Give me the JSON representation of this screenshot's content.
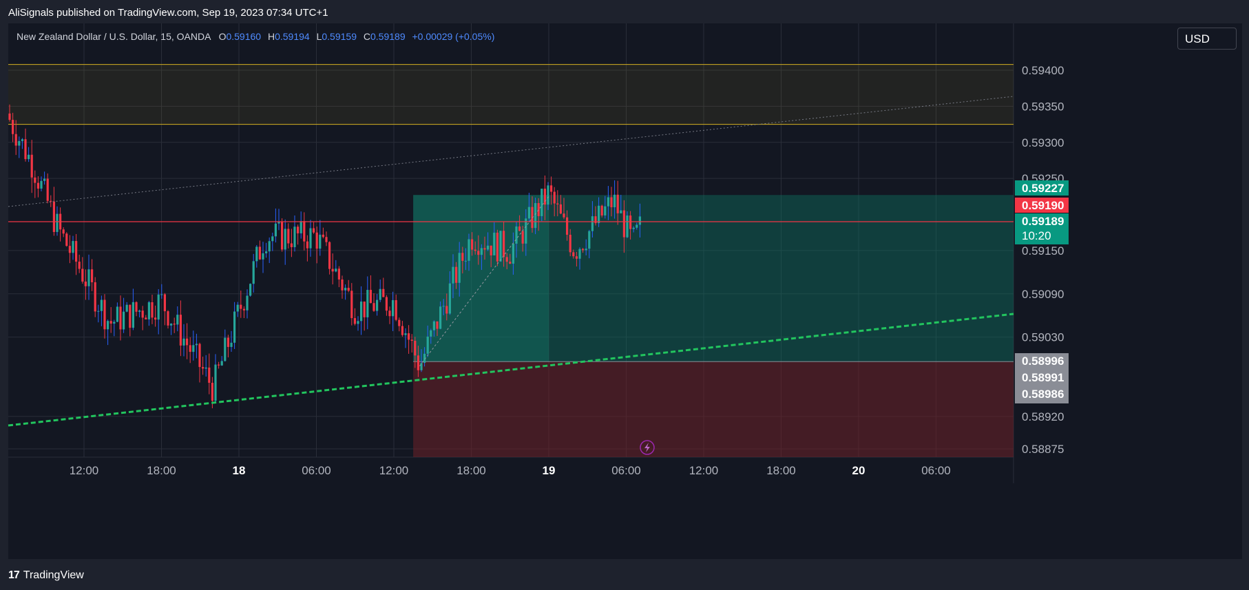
{
  "header": {
    "published": "AliSignals published on TradingView.com, Sep 19, 2023 07:34 UTC+1"
  },
  "legend": {
    "symbol": "New Zealand Dollar / U.S. Dollar, 15, OANDA",
    "o_label": "O",
    "o_value": "0.59160",
    "h_label": "H",
    "h_value": "0.59194",
    "l_label": "L",
    "l_value": "0.59159",
    "c_label": "C",
    "c_value": "0.59189",
    "change": "+0.00029 (+0.05%)"
  },
  "currency_button": "USD",
  "footer": {
    "brand": "TradingView",
    "logo_glyph": "17"
  },
  "colors": {
    "background": "#131722",
    "up": "#26a69a",
    "down": "#f23645",
    "wick_up": "#2962ff",
    "resistance": "#f23645",
    "zone": "#d4b020",
    "target_zone": "#0e5f55",
    "stop_zone": "#5a1f26",
    "support_trend": "#22c55e"
  },
  "chart_data": {
    "type": "candlestick",
    "symbol": "NZDUSD",
    "timeframe": "15",
    "ylim": [
      0.5886,
      0.5946
    ],
    "y_ticks": [
      0.594,
      0.5935,
      0.593,
      0.5925,
      0.5915,
      0.5909,
      0.5903,
      0.5892,
      0.58875
    ],
    "y_tick_labels": [
      "0.59400",
      "0.59350",
      "0.59300",
      "0.59250",
      "0.59150",
      "0.59090",
      "0.59030",
      "0.58920",
      "0.58875"
    ],
    "x_ticks": [
      "12:00",
      "18:00",
      "18",
      "06:00",
      "12:00",
      "18:00",
      "19",
      "06:00",
      "12:00",
      "18:00",
      "20",
      "06:00"
    ],
    "x_tick_bold": [
      false,
      false,
      true,
      false,
      false,
      false,
      true,
      false,
      false,
      false,
      true,
      false
    ],
    "price_labels": [
      {
        "text": "0.59227",
        "value": 0.59227,
        "color": "#089981"
      },
      {
        "text": "0.59190",
        "value": 0.5919,
        "color": "#f23645"
      },
      {
        "text": "0.59189",
        "sub": "10:20",
        "value": 0.59189,
        "color": "#089981"
      },
      {
        "text": "0.58996",
        "value": 0.58996,
        "color": "#8a8d96"
      },
      {
        "text": "0.58991",
        "value": 0.58991,
        "color": "#8a8d96"
      },
      {
        "text": "0.58986",
        "value": 0.58986,
        "color": "#8a8d96"
      }
    ],
    "supply_zone": {
      "top": 0.59408,
      "bottom": 0.59325
    },
    "resistance_level": 0.5919,
    "position": {
      "entry": 0.58996,
      "target": 0.59227,
      "stop": 0.5886
    },
    "key_points": [
      {
        "t": "Sep 17 06:00",
        "price": 0.5934
      },
      {
        "t": "Sep 17 08:00",
        "price": 0.5927
      },
      {
        "t": "Sep 17 10:00",
        "price": 0.5918
      },
      {
        "t": "Sep 17 14:00",
        "price": 0.5905
      },
      {
        "t": "Sep 17 18:00",
        "price": 0.5908
      },
      {
        "t": "Sep 17 22:00",
        "price": 0.5896
      },
      {
        "t": "Sep 18 02:00",
        "price": 0.5917
      },
      {
        "t": "Sep 18 06:00",
        "price": 0.5917
      },
      {
        "t": "Sep 18 09:00",
        "price": 0.5907
      },
      {
        "t": "Sep 18 12:00",
        "price": 0.5908
      },
      {
        "t": "Sep 18 14:00",
        "price": 0.5899
      },
      {
        "t": "Sep 18 18:00",
        "price": 0.5917
      },
      {
        "t": "Sep 18 21:00",
        "price": 0.5915
      },
      {
        "t": "Sep 19 00:00",
        "price": 0.5923
      },
      {
        "t": "Sep 19 02:00",
        "price": 0.5915
      },
      {
        "t": "Sep 19 05:00",
        "price": 0.5922
      },
      {
        "t": "Sep 19 06:30",
        "price": 0.5916
      },
      {
        "t": "Sep 19 07:15",
        "price": 0.59189
      }
    ]
  }
}
